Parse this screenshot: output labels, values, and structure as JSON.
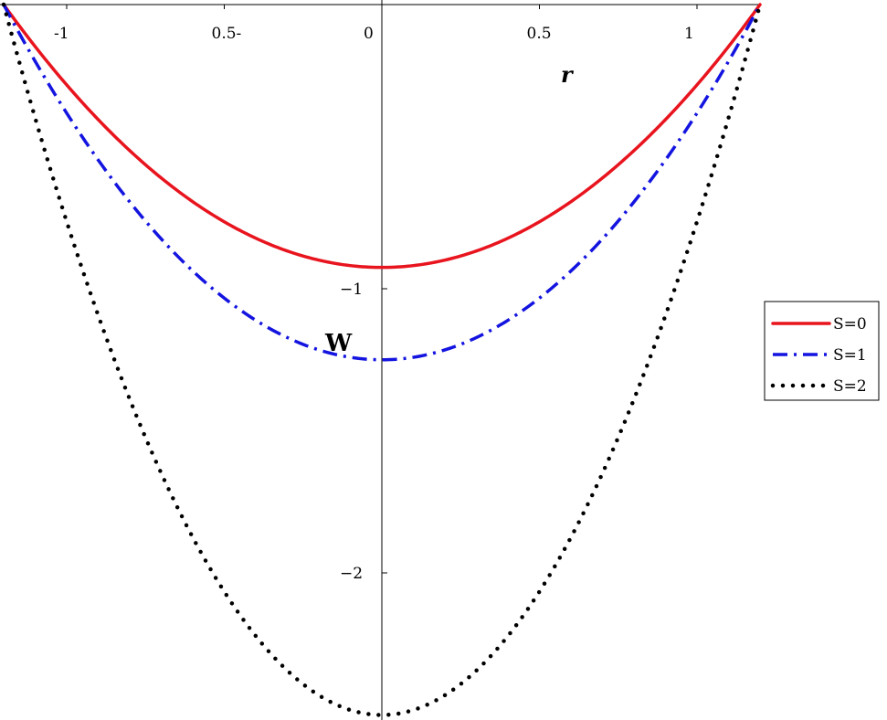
{
  "chart_data": {
    "type": "line",
    "xlabel": "r",
    "ylabel": "W",
    "xlim": [
      -1.2,
      1.2
    ],
    "ylim": [
      -2.5,
      0
    ],
    "x_ticks": [
      {
        "value": -1,
        "label": "-1"
      },
      {
        "value": -0.5,
        "label": "0.5-"
      },
      {
        "value": 0,
        "label": "0"
      },
      {
        "value": 0.5,
        "label": "0.5"
      },
      {
        "value": 1,
        "label": "1"
      }
    ],
    "y_ticks": [
      {
        "value": -1,
        "label": "−1"
      },
      {
        "value": -2,
        "label": "−2"
      }
    ],
    "x_range": [
      -1.2,
      1.2
    ],
    "series": [
      {
        "name": "S=0",
        "color": "#e8141e",
        "style": "solid",
        "amplitude": 0.925
      },
      {
        "name": "S=1",
        "color": "#1414e0",
        "style": "dashdot",
        "amplitude": 1.25
      },
      {
        "name": "S=2",
        "color": "#000000",
        "style": "dotted",
        "amplitude": 2.5
      }
    ],
    "legend": {
      "position": "right",
      "entries": [
        "S=0",
        "S=1",
        "S=2"
      ]
    },
    "grid": false
  }
}
